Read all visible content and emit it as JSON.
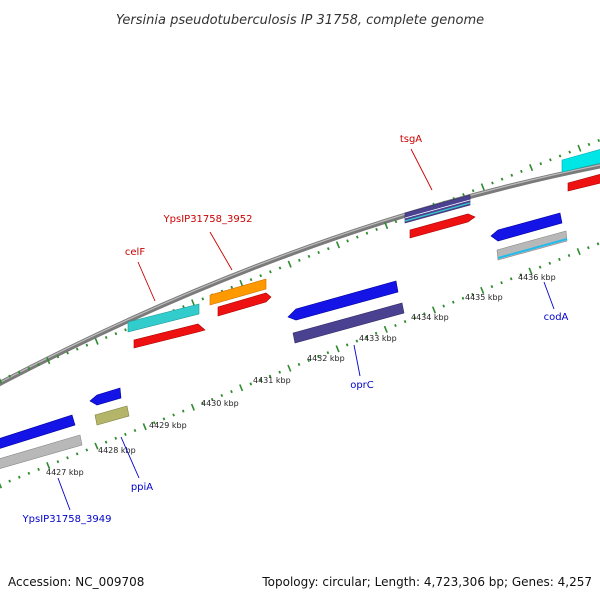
{
  "title": "Yersinia pseudotuberculosis IP 31758, complete genome",
  "footer": {
    "accession": "Accession: NC_009708",
    "summary": "Topology: circular; Length: 4,723,306 bp; Genes: 4,257"
  },
  "colors": {
    "backbone": "#8c8c8c",
    "tick": "#2e8b2e",
    "label_forward": "#cc0000",
    "label_reverse": "#0000cc",
    "blue": "#1414e6",
    "red": "#ee1111",
    "cyan": "#33cccc",
    "orange": "#ff9900",
    "navy": "#4a4290",
    "gray": "#b8b8b8",
    "olive": "#b5b56a",
    "sky": "#22bbee"
  },
  "kbp_labels": [
    "4427 kbp",
    "4428 kbp",
    "4429 kbp",
    "4430 kbp",
    "4431 kbp",
    "4432 kbp",
    "4433 kbp",
    "4434 kbp",
    "4435 kbp",
    "4436 kbp"
  ],
  "gene_labels": {
    "forward": [
      "celF",
      "YpsIP31758_3952",
      "tsgA"
    ],
    "reverse": [
      "YpsIP31758_3949",
      "ppiA",
      "oprC",
      "codA"
    ]
  }
}
